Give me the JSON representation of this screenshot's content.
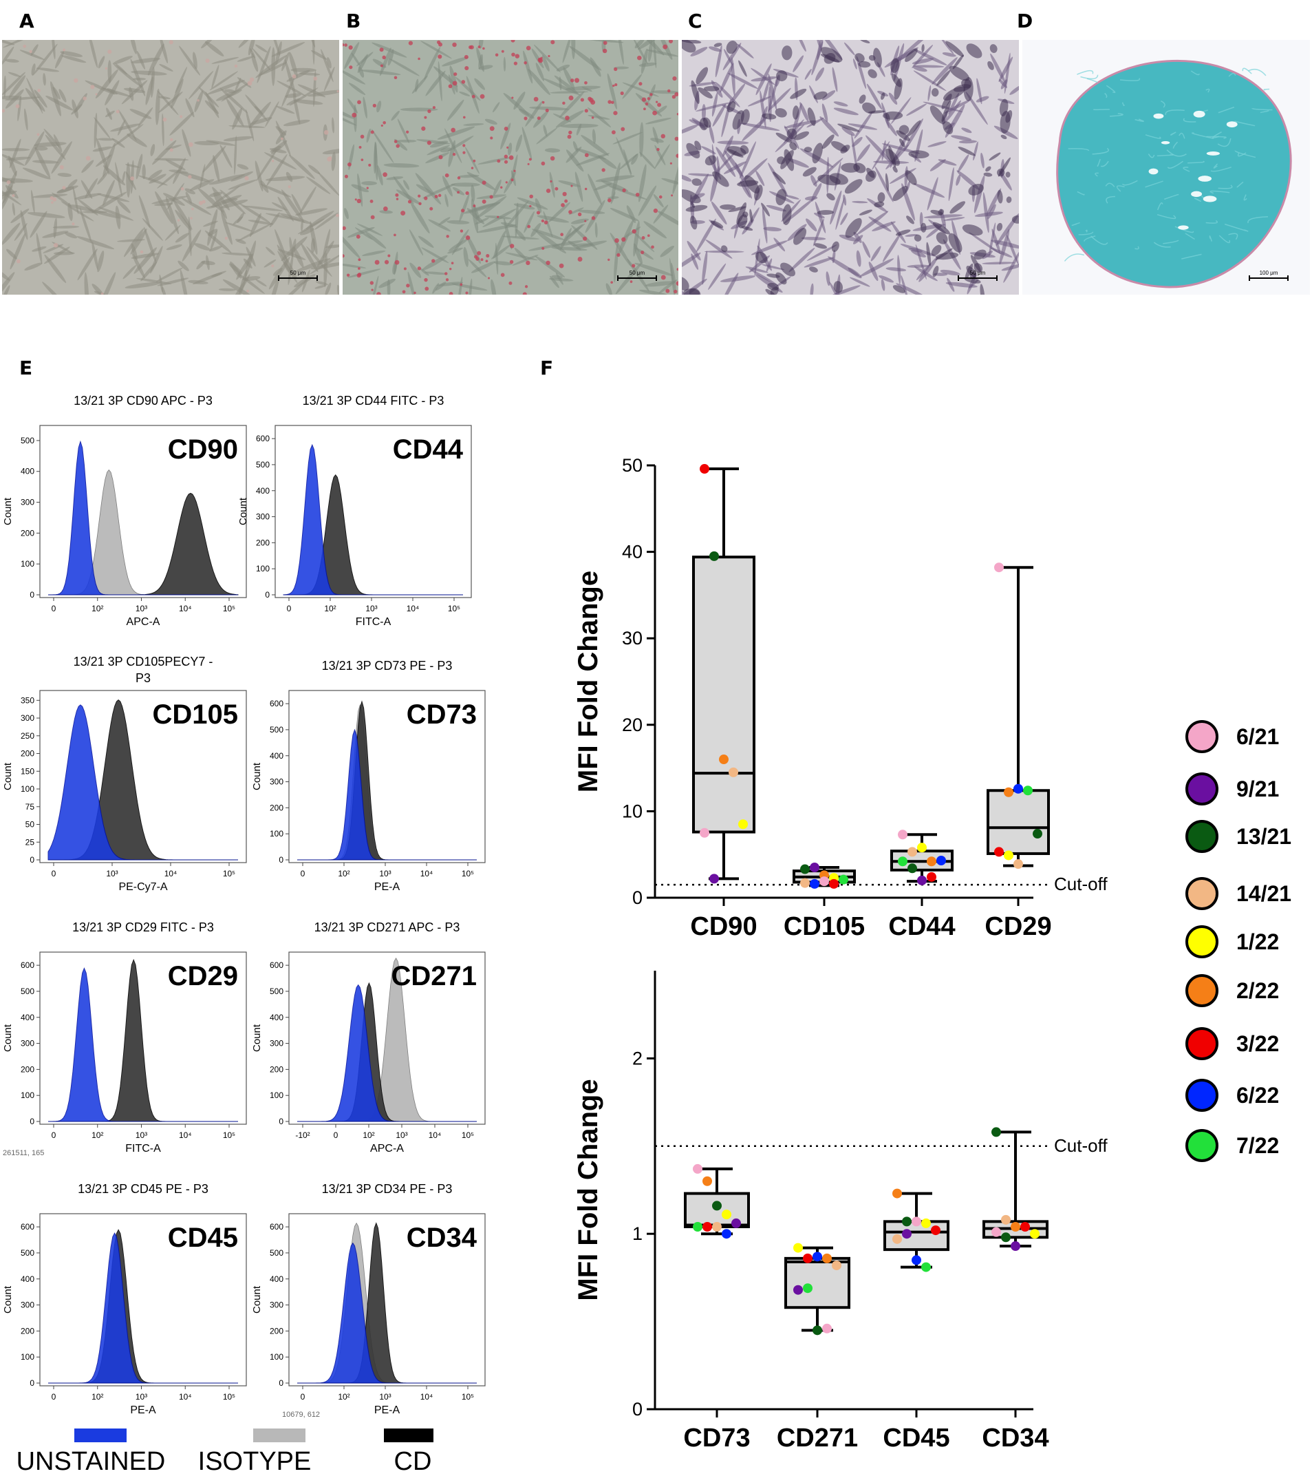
{
  "panel_labels": {
    "a": "A",
    "b": "B",
    "c": "C",
    "d": "D",
    "e": "E",
    "f": "F"
  },
  "micrographs": [
    {
      "scale": "50 μm",
      "bg": "#b7b6ad",
      "cell": "#8e8c82",
      "tint": "#c9a7a1"
    },
    {
      "scale": "50 μm",
      "bg": "#a9b2a7",
      "cell": "#7f8a80",
      "tint": "#c0455a"
    },
    {
      "scale": "50 μm",
      "bg": "#d7d2da",
      "cell": "#6b5a7f",
      "tint": "#3e3050"
    },
    {
      "scale": "100 μm",
      "bg": "#f7f8fb",
      "cell": "#47b8c1",
      "tint": "#79d3d8"
    }
  ],
  "histograms": [
    {
      "title": "13/21 3P CD90 APC - P3",
      "marker": "CD90",
      "xlabel": "APC-A",
      "ylabel": "Count",
      "yticks": [
        "0",
        "100",
        "200",
        "300",
        "400",
        "500"
      ],
      "xticks": [
        "0",
        "10²",
        "10³",
        "10⁴",
        "10⁵"
      ]
    },
    {
      "title": "13/21 3P CD44 FITC - P3",
      "marker": "CD44",
      "xlabel": "FITC-A",
      "ylabel": "Count",
      "yticks": [
        "0",
        "100",
        "200",
        "300",
        "400",
        "500",
        "600"
      ],
      "xticks": [
        "0",
        "10²",
        "10³",
        "10⁴",
        "10⁵"
      ]
    },
    {
      "title": "13/21 3P CD105PECY7 -",
      "title2": "P3",
      "marker": "CD105",
      "xlabel": "PE-Cy7-A",
      "ylabel": "Count",
      "yticks": [
        "0",
        "25",
        "50",
        "75",
        "100",
        "150",
        "200",
        "250",
        "300",
        "350"
      ],
      "xticks": [
        "0",
        "10³",
        "10⁴",
        "10⁵"
      ]
    },
    {
      "title": "13/21 3P CD73 PE - P3",
      "marker": "CD73",
      "xlabel": "PE-A",
      "ylabel": "Count",
      "yticks": [
        "0",
        "100",
        "200",
        "300",
        "400",
        "500",
        "600"
      ],
      "xticks": [
        "0",
        "10²",
        "10³",
        "10⁴",
        "10⁵"
      ]
    },
    {
      "title": "13/21 3P CD29 FITC - P3",
      "marker": "CD29",
      "xlabel": "FITC-A",
      "ylabel": "Count",
      "yticks": [
        "0",
        "100",
        "200",
        "300",
        "400",
        "500",
        "600"
      ],
      "xticks": [
        "0",
        "10²",
        "10³",
        "10⁴",
        "10⁵"
      ],
      "note": "261511, 165"
    },
    {
      "title": "13/21 3P CD271 APC - P3",
      "marker": "CD271",
      "xlabel": "APC-A",
      "ylabel": "Count",
      "yticks": [
        "0",
        "100",
        "200",
        "300",
        "400",
        "500",
        "600"
      ],
      "xticks": [
        "-10²",
        "0",
        "10²",
        "10³",
        "10⁴",
        "10⁵"
      ]
    },
    {
      "title": "13/21 3P CD45 PE - P3",
      "marker": "CD45",
      "xlabel": "PE-A",
      "ylabel": "Count",
      "yticks": [
        "0",
        "100",
        "200",
        "300",
        "400",
        "500",
        "600"
      ],
      "xticks": [
        "0",
        "10²",
        "10³",
        "10⁴",
        "10⁵"
      ],
      "note": "10679, 612"
    },
    {
      "title": "13/21 3P CD34 PE - P3",
      "marker": "CD34",
      "xlabel": "PE-A",
      "ylabel": "Count",
      "yticks": [
        "0",
        "100",
        "200",
        "300",
        "400",
        "500",
        "600"
      ],
      "xticks": [
        "0",
        "10²",
        "10³",
        "10⁴",
        "10⁵"
      ]
    }
  ],
  "histogram_legend": [
    {
      "label": "UNSTAINED",
      "color": "#1a3be0"
    },
    {
      "label": "ISOTYPE",
      "color": "#b8b8b8"
    },
    {
      "label": "CD",
      "color": "#000000"
    }
  ],
  "donors": [
    {
      "label": "6/21",
      "color": "#f4a6c8"
    },
    {
      "label": "9/21",
      "color": "#6a0fa0"
    },
    {
      "label": "13/21",
      "color": "#0a5a12"
    },
    {
      "label": "14/21",
      "color": "#f2b784"
    },
    {
      "label": "1/22",
      "color": "#ffff00"
    },
    {
      "label": "2/22",
      "color": "#f57f17"
    },
    {
      "label": "3/22",
      "color": "#f00000"
    },
    {
      "label": "6/22",
      "color": "#0026ff"
    },
    {
      "label": "7/22",
      "color": "#22e03a"
    }
  ],
  "chart_data": [
    {
      "type": "box",
      "ylabel": "MFI Fold Change",
      "ylim": [
        0,
        50
      ],
      "yticks": [
        0,
        10,
        20,
        30,
        40,
        50
      ],
      "cutoff": 1.5,
      "cutoff_label": "Cut-off",
      "categories": [
        "CD90",
        "CD105",
        "CD44",
        "CD29"
      ],
      "boxes": [
        {
          "min": 2.2,
          "q1": 7.6,
          "median": 14.4,
          "q3": 39.4,
          "max": 49.6
        },
        {
          "min": 1.4,
          "q1": 1.8,
          "median": 2.4,
          "q3": 3.1,
          "max": 3.5
        },
        {
          "min": 1.9,
          "q1": 3.2,
          "median": 4.2,
          "q3": 5.4,
          "max": 7.3
        },
        {
          "min": 3.7,
          "q1": 5.1,
          "median": 8.1,
          "q3": 12.4,
          "max": 38.2
        }
      ],
      "points": [
        [
          {
            "d": "3/22",
            "v": 49.6
          },
          {
            "d": "13/21",
            "v": 39.5
          },
          {
            "d": "2/22",
            "v": 16.0
          },
          {
            "d": "14/21",
            "v": 14.5
          },
          {
            "d": "1/22",
            "v": 8.5
          },
          {
            "d": "6/21",
            "v": 7.5
          },
          {
            "d": "9/21",
            "v": 2.2
          }
        ],
        [
          {
            "d": "13/21",
            "v": 3.3
          },
          {
            "d": "9/21",
            "v": 3.5
          },
          {
            "d": "2/22",
            "v": 2.6
          },
          {
            "d": "1/22",
            "v": 2.3
          },
          {
            "d": "7/22",
            "v": 2.1
          },
          {
            "d": "14/21",
            "v": 1.7
          },
          {
            "d": "6/22",
            "v": 1.6
          },
          {
            "d": "6/21",
            "v": 1.9
          },
          {
            "d": "3/22",
            "v": 1.6
          }
        ],
        [
          {
            "d": "6/21",
            "v": 7.3
          },
          {
            "d": "14/21",
            "v": 5.3
          },
          {
            "d": "1/22",
            "v": 5.8
          },
          {
            "d": "2/22",
            "v": 4.2
          },
          {
            "d": "6/22",
            "v": 4.3
          },
          {
            "d": "7/22",
            "v": 4.2
          },
          {
            "d": "13/21",
            "v": 3.4
          },
          {
            "d": "9/21",
            "v": 2.0
          },
          {
            "d": "3/22",
            "v": 2.4
          }
        ],
        [
          {
            "d": "6/21",
            "v": 38.2
          },
          {
            "d": "2/22",
            "v": 12.2
          },
          {
            "d": "6/22",
            "v": 12.6
          },
          {
            "d": "7/22",
            "v": 12.4
          },
          {
            "d": "13/21",
            "v": 7.4
          },
          {
            "d": "3/22",
            "v": 5.3
          },
          {
            "d": "1/22",
            "v": 4.9
          },
          {
            "d": "14/21",
            "v": 3.9
          }
        ]
      ]
    },
    {
      "type": "box",
      "ylabel": "MFI Fold Change",
      "ylim": [
        0,
        2.5
      ],
      "yticks": [
        0,
        1,
        2
      ],
      "cutoff": 1.5,
      "cutoff_label": "Cut-off",
      "categories": [
        "CD73",
        "CD271",
        "CD45",
        "CD34"
      ],
      "boxes": [
        {
          "min": 1.0,
          "q1": 1.04,
          "median": 1.05,
          "q3": 1.23,
          "max": 1.37
        },
        {
          "min": 0.45,
          "q1": 0.58,
          "median": 0.84,
          "q3": 0.86,
          "max": 0.92
        },
        {
          "min": 0.81,
          "q1": 0.91,
          "median": 1.01,
          "q3": 1.07,
          "max": 1.23
        },
        {
          "min": 0.93,
          "q1": 0.98,
          "median": 1.03,
          "q3": 1.07,
          "max": 1.58
        }
      ],
      "points": [
        [
          {
            "d": "6/21",
            "v": 1.37
          },
          {
            "d": "2/22",
            "v": 1.3
          },
          {
            "d": "13/21",
            "v": 1.16
          },
          {
            "d": "1/22",
            "v": 1.11
          },
          {
            "d": "9/21",
            "v": 1.06
          },
          {
            "d": "7/22",
            "v": 1.04
          },
          {
            "d": "3/22",
            "v": 1.04
          },
          {
            "d": "14/21",
            "v": 1.04
          },
          {
            "d": "6/22",
            "v": 1.0
          }
        ],
        [
          {
            "d": "1/22",
            "v": 0.92
          },
          {
            "d": "3/22",
            "v": 0.86
          },
          {
            "d": "6/22",
            "v": 0.87
          },
          {
            "d": "2/22",
            "v": 0.86
          },
          {
            "d": "14/21",
            "v": 0.82
          },
          {
            "d": "9/21",
            "v": 0.68
          },
          {
            "d": "7/22",
            "v": 0.69
          },
          {
            "d": "13/21",
            "v": 0.45
          },
          {
            "d": "6/21",
            "v": 0.46
          }
        ],
        [
          {
            "d": "2/22",
            "v": 1.23
          },
          {
            "d": "13/21",
            "v": 1.07
          },
          {
            "d": "6/21",
            "v": 1.07
          },
          {
            "d": "1/22",
            "v": 1.06
          },
          {
            "d": "3/22",
            "v": 1.02
          },
          {
            "d": "14/21",
            "v": 0.97
          },
          {
            "d": "9/21",
            "v": 1.0
          },
          {
            "d": "6/22",
            "v": 0.85
          },
          {
            "d": "7/22",
            "v": 0.81
          }
        ],
        [
          {
            "d": "13/21",
            "v": 1.58
          },
          {
            "d": "14/21",
            "v": 1.08
          },
          {
            "d": "2/22",
            "v": 1.04
          },
          {
            "d": "3/22",
            "v": 1.04
          },
          {
            "d": "1/22",
            "v": 1.0
          },
          {
            "d": "6/21",
            "v": 1.01
          },
          {
            "d": "13/21",
            "v": 0.98
          },
          {
            "d": "9/21",
            "v": 0.93
          }
        ]
      ]
    }
  ]
}
